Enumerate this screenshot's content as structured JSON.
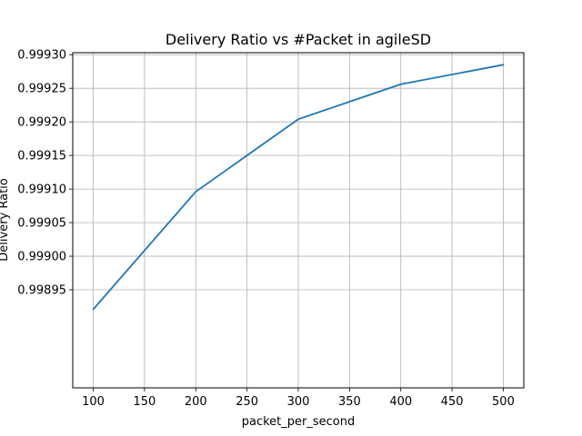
{
  "chart_data": {
    "type": "line",
    "title": "Delivery Ratio vs #Packet in agileSD",
    "xlabel": "packet_per_second",
    "ylabel": "Delivery Ratio",
    "xlim": [
      80,
      520
    ],
    "ylim": [
      0.998804,
      0.999303
    ],
    "xticks": [
      100,
      150,
      200,
      250,
      300,
      350,
      400,
      450,
      500
    ],
    "yticks": [
      0.99895,
      0.999,
      0.99905,
      0.9991,
      0.99915,
      0.9992,
      0.99925,
      0.9993
    ],
    "ytick_labels": [
      "0.99895",
      "0.99900",
      "0.99905",
      "0.99910",
      "0.99915",
      "0.99920",
      "0.99925",
      "0.99930"
    ],
    "grid": true,
    "series": [
      {
        "x": [
          100,
          200,
          300,
          400,
          500
        ],
        "values": [
          0.998921,
          0.999096,
          0.999204,
          0.999256,
          0.999285
        ],
        "color": "#1f77b4"
      }
    ]
  }
}
